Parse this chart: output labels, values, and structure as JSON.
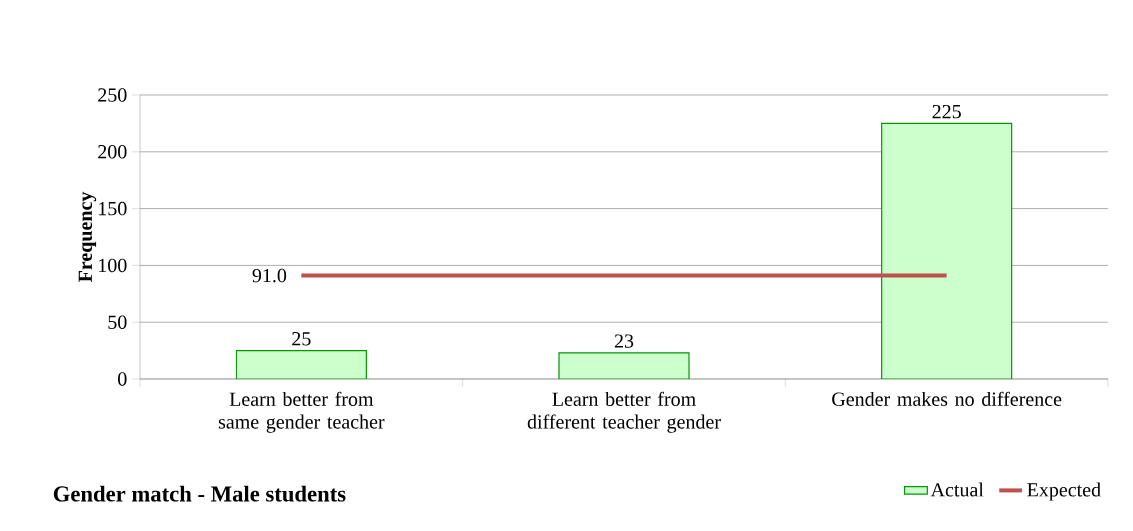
{
  "chart_data": {
    "type": "bar",
    "title": "Gender match - Male students",
    "ylabel": "Frequency",
    "categories": [
      "Learn better from same gender teacher",
      "Learn better from different teacher gender",
      "Gender makes no difference"
    ],
    "series": [
      {
        "name": "Actual",
        "color": "#ccffcc",
        "values": [
          25,
          23,
          225
        ],
        "value_labels": [
          "25",
          "23",
          "225"
        ]
      },
      {
        "name": "Expected",
        "type": "line",
        "color": "#c0504d",
        "values": [
          91.0,
          91.0,
          91.0
        ],
        "value_labels": [
          "91.0",
          null,
          null
        ]
      }
    ],
    "ylim": [
      0,
      250
    ],
    "yticks": [
      0,
      50,
      100,
      150,
      200,
      250
    ],
    "grid": "y",
    "legend": "bottom right"
  }
}
